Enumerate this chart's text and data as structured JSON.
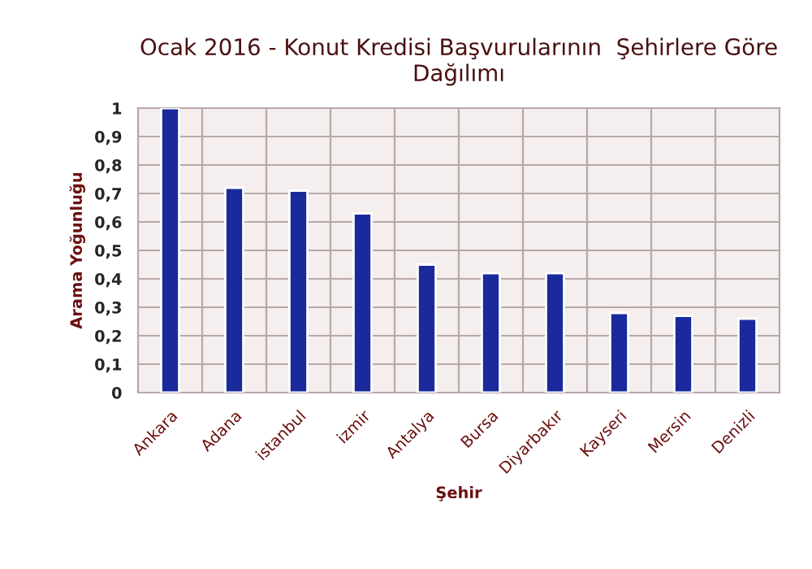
{
  "chart_data": {
    "type": "bar",
    "title": "Ocak 2016 - Konut Kredisi Başvurularının  Şehirlere Göre\nDağılımı",
    "xlabel": "Şehir",
    "ylabel": "Arama Yoğunluğu",
    "categories": [
      "Ankara",
      "Adana",
      "istanbul",
      "izmir",
      "Antalya",
      "Bursa",
      "Diyarbakır",
      "Kayseri",
      "Mersin",
      "Denizli"
    ],
    "values": [
      1,
      0.72,
      0.71,
      0.63,
      0.45,
      0.42,
      0.42,
      0.28,
      0.27,
      0.26
    ],
    "color": "#1a2a9c",
    "ylim": [
      0,
      1
    ],
    "yticks": [
      {
        "value": 0,
        "label": "0"
      },
      {
        "value": 0.1,
        "label": "0,1"
      },
      {
        "value": 0.2,
        "label": "0,2"
      },
      {
        "value": 0.3,
        "label": "0,3"
      },
      {
        "value": 0.4,
        "label": "0,4"
      },
      {
        "value": 0.5,
        "label": "0,5"
      },
      {
        "value": 0.6,
        "label": "0,6"
      },
      {
        "value": 0.7,
        "label": "0,7"
      },
      {
        "value": 0.8,
        "label": "0,8"
      },
      {
        "value": 0.9,
        "label": "0,9"
      },
      {
        "value": 1,
        "label": "1"
      }
    ],
    "grid": true,
    "legend": false
  }
}
